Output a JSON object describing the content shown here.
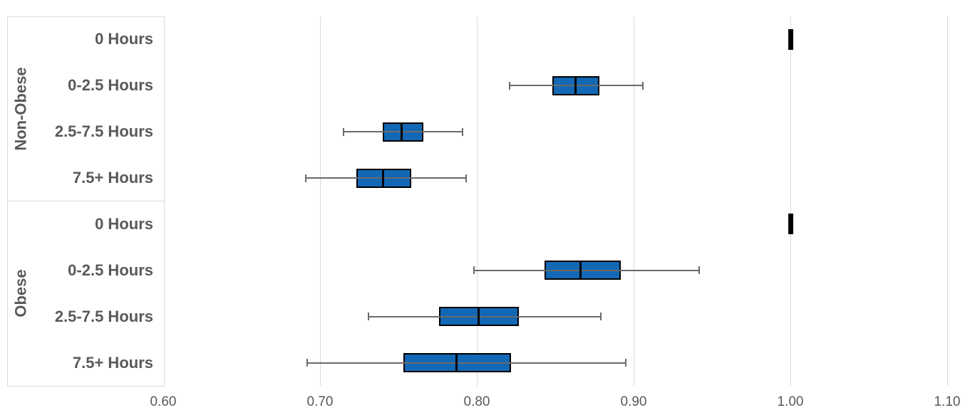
{
  "chart_data": {
    "type": "boxplot",
    "orientation": "horizontal",
    "title": "",
    "xlabel": "",
    "ylabel": "",
    "xlim": [
      0.6,
      1.1
    ],
    "xticks": [
      0.6,
      0.7,
      0.8,
      0.9,
      1.0,
      1.1
    ],
    "xtick_labels": [
      "0.60",
      "0.70",
      "0.80",
      "0.90",
      "1.00",
      "1.10"
    ],
    "grid": "vertical-gridlines-on",
    "legend": "none",
    "groups": [
      {
        "label": "Non-Obese",
        "boxes": [
          {
            "category": "0 Hours",
            "min": 1.0,
            "q1": 1.0,
            "median": 1.0,
            "q3": 1.0,
            "max": 1.0
          },
          {
            "category": "0-2.5 Hours",
            "min": 0.821,
            "q1": 0.848,
            "median": 0.863,
            "q3": 0.878,
            "max": 0.906
          },
          {
            "category": "2.5-7.5 Hours",
            "min": 0.715,
            "q1": 0.74,
            "median": 0.752,
            "q3": 0.766,
            "max": 0.791
          },
          {
            "category": "7.5+ Hours",
            "min": 0.691,
            "q1": 0.723,
            "median": 0.74,
            "q3": 0.758,
            "max": 0.793
          }
        ]
      },
      {
        "label": "Obese",
        "boxes": [
          {
            "category": "0 Hours",
            "min": 1.0,
            "q1": 1.0,
            "median": 1.0,
            "q3": 1.0,
            "max": 1.0
          },
          {
            "category": "0-2.5 Hours",
            "min": 0.798,
            "q1": 0.843,
            "median": 0.866,
            "q3": 0.892,
            "max": 0.942
          },
          {
            "category": "2.5-7.5 Hours",
            "min": 0.731,
            "q1": 0.776,
            "median": 0.801,
            "q3": 0.827,
            "max": 0.879
          },
          {
            "category": "7.5+ Hours",
            "min": 0.692,
            "q1": 0.753,
            "median": 0.787,
            "q3": 0.822,
            "max": 0.895
          }
        ]
      }
    ],
    "colors": {
      "box_fill": "#1268B5",
      "box_border": "#000000",
      "median": "#000000",
      "degenerate_box": "#000000",
      "whisker": "#6A6A6A",
      "gridline": "#D9D9D9",
      "panel_border": "#D9D9D9",
      "category_text": "#595959",
      "group_text": "#595959",
      "tick_text": "#595959",
      "background": "#FFFFFF"
    }
  }
}
